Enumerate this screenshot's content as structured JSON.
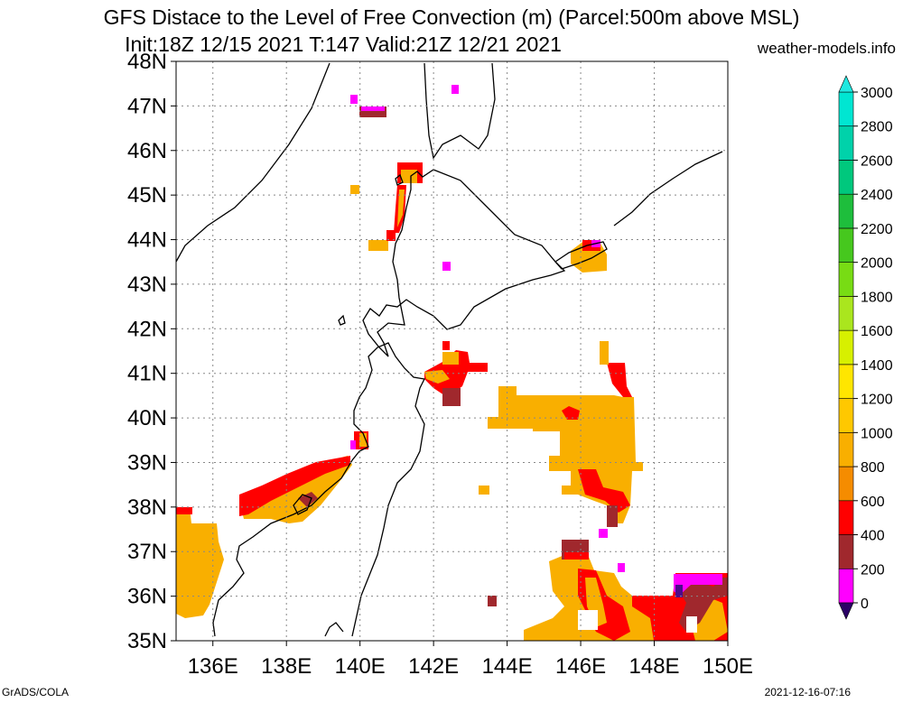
{
  "title_line1": "GFS Distace to the Level of Free Convection (m) (Parcel:500m above MSL)",
  "title_line2": "Init:18Z 12/15 2021 T:147 Valid:21Z 12/21 2021",
  "site": "weather-models.info",
  "footer_left": "GrADS/COLA",
  "footer_right": "2021-12-16-07:16",
  "lat_labels": [
    "48N",
    "47N",
    "46N",
    "45N",
    "44N",
    "43N",
    "42N",
    "41N",
    "40N",
    "39N",
    "38N",
    "37N",
    "36N",
    "35N"
  ],
  "lon_labels": [
    "136E",
    "138E",
    "140E",
    "142E",
    "144E",
    "146E",
    "148E",
    "150E"
  ],
  "colorbar": {
    "labels": [
      "0",
      "200",
      "400",
      "600",
      "800",
      "1000",
      "1200",
      "1400",
      "1600",
      "1800",
      "2000",
      "2200",
      "2400",
      "2600",
      "2800",
      "3000"
    ],
    "colors": [
      "#4b0a8c",
      "#ff00ff",
      "#a0282d",
      "#ff0000",
      "#f58c00",
      "#f9af00",
      "#ffc800",
      "#ffe600",
      "#d7f000",
      "#aae61e",
      "#78dc14",
      "#46c81e",
      "#1ebe3c",
      "#00c87d",
      "#00d2aa",
      "#00e6d2"
    ],
    "below_color": "#2b0066",
    "above_color": "#20e8e0"
  },
  "map_extent": {
    "lon_min": 135,
    "lon_max": 150,
    "lat_min": 35,
    "lat_max": 48
  }
}
